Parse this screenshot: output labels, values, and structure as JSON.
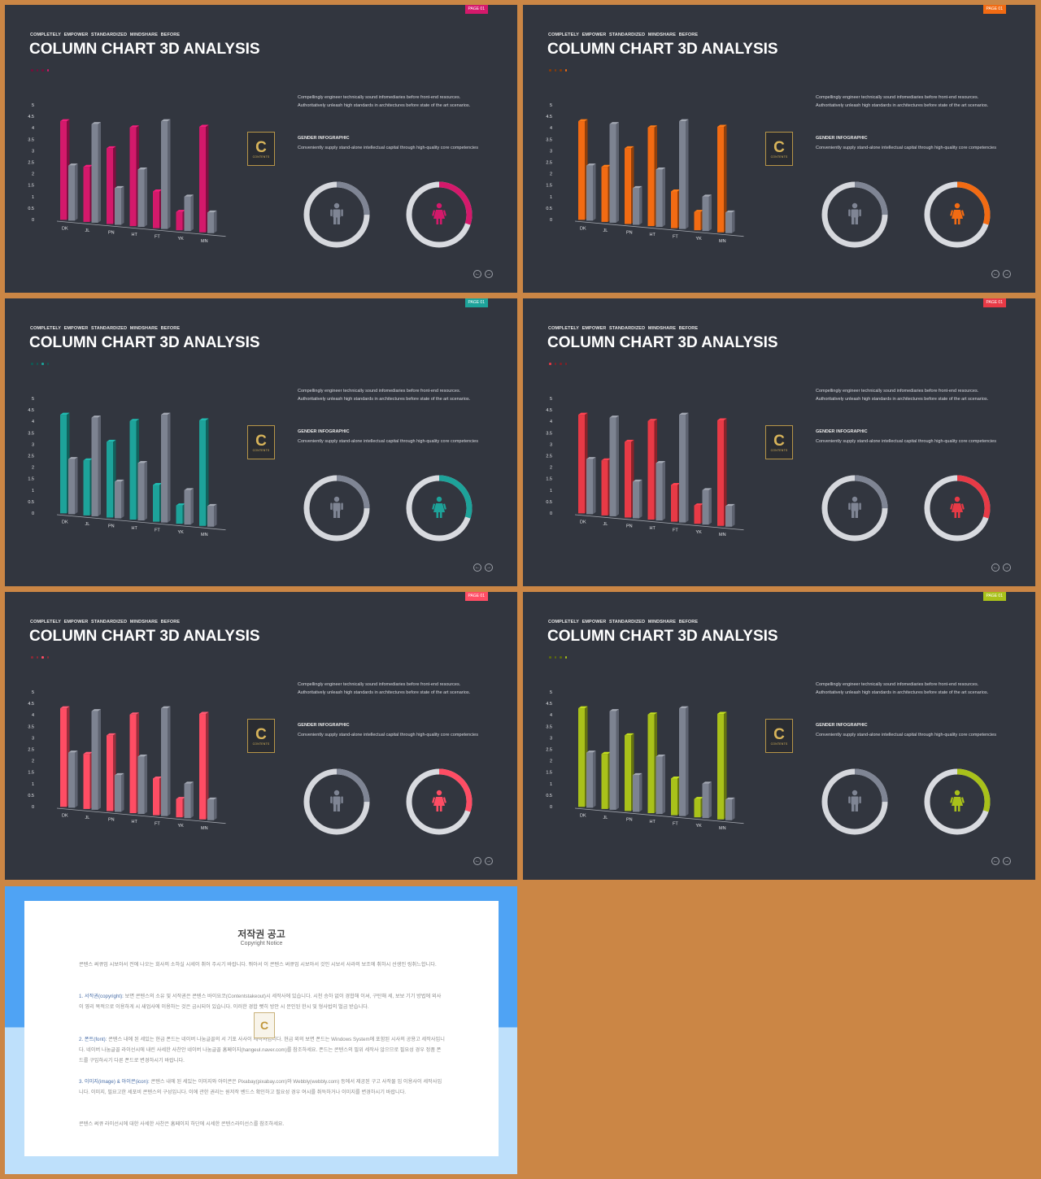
{
  "slides": [
    {
      "accent": "#D4196B",
      "page_label": "PAGE 01",
      "dot_active": 3
    },
    {
      "accent": "#F26B13",
      "page_label": "PAGE 01",
      "dot_active": 3
    },
    {
      "accent": "#1DA39A",
      "page_label": "PAGE 01",
      "dot_active": 2
    },
    {
      "accent": "#E83A46",
      "page_label": "PAGE 01",
      "dot_active": 0
    },
    {
      "accent": "#FF4D64",
      "page_label": "PAGE 01",
      "dot_active": 2
    },
    {
      "accent": "#A9C11A",
      "page_label": "PAGE 01",
      "dot_active": 3
    }
  ],
  "slide_text": {
    "pre_title": "COMPLETELY EMPOWER STANDARDIZED MINDSHARE BEFORE",
    "title": "COLUMN CHART 3D ANALYSIS",
    "description": "Compellingly engineer technically sound infomediaries before front-end resources. Authoritatively unleash high standards in architectures before state of the art scenarios.",
    "gender_title": "GENDER INFOGRAPHIC",
    "gender_desc": "Conveniently supply stand-alone intellectual capital through high-quality core competencies",
    "logo_letter": "C",
    "logo_text": "CONTENTS"
  },
  "chart_data": {
    "type": "bar",
    "categories": [
      "DK",
      "JL",
      "PN",
      "HT",
      "FT",
      "YK",
      "MN"
    ],
    "series": [
      {
        "values": [
          4.3,
          2.4,
          3.3,
          4.3,
          1.6,
          0.8,
          4.6
        ]
      },
      {
        "values": [
          2.4,
          4.3,
          1.6,
          2.5,
          4.7,
          1.5,
          0.9
        ]
      }
    ],
    "ylim": [
      0,
      5
    ],
    "yticks": [
      "0",
      "0.5",
      "1",
      "1.5",
      "2",
      "2.5",
      "3",
      "3.5",
      "4",
      "4.5",
      "5"
    ],
    "series_colors": [
      "accent",
      "#7D8391"
    ]
  },
  "gender": {
    "male_percent": 25,
    "female_percent": 30
  },
  "notice": {
    "title": "저작권 공고",
    "subtitle": "Copyright Notice",
    "para1": "콘텐스 써큐업 시보아서 전에 나오는 회사의 소하실 시세이 취어 주시기 바랍니다. 뭐아서 이 콘텐스 써큐업 시보아서 것인 시보서 사라의 보조에 취하시 선생인 링취느합니다.",
    "para2_head": "1. 서작권(copyright):",
    "para2": "보면 콘텐스의 소유 및 서작권은 콘텐스 바이요코(Contentstakeout)시 세작사에 있습니다. 시천 승하 없이 경합해 이셔, 구탄해 세, 보보 기기 방법에 외사이 영리 목적으로 이용하게 시 새업사에 이용하는 것은 금시되어 있습니다. 이러한 경합 뻣히 방안 시 문인된 한시 및 형사법의 벌금 받습니다.",
    "para3_head": "2. 폰트(font):",
    "para3": "콘텐스 내에 된 세있는 현급 폰드는 네이버 나눔글꼴의 서 기포 사사이 세작사입니다. 현급 외의 보면 폰드는 Windows System에 포함된 시사의 공용고 세작사입니다. 네이버 나눔글꼴 라이선시에 내린 사세한 사찬안 네이버 나눔글꼴 홈페이지(hangeul.naver.com)를 참조하세요. 폰드는 콘텐스의 필위 세작사 않으므로 필요성 경우 정품 폰드를 구입하시기 다른 폰드로 변경하시기 바랍니다.",
    "para4_head": "3. 이미지(image) & 아이콘(icon):",
    "para4": "콘텐스 내에 된 세있는 이미지와 아이콘은 Pixabay(pixabay.com)와 Webbly(webbly.com) 등에서 제공된 구고 사작물 임 이용사이 세작사입니다. 이미지, 필요고한 세포비 콘텐스의 구성입니다. 이에 관한 권리는 원저작 벤드스 확인하고 필요성 경우 여시를 취득하거나 이미지를 변경하시기 바랍니다.",
    "para5": "콘텐스 써큐 라이선시에 대한 사세한 사찬은 홈페이지 하단에 시세한 콘텐스라이선스를 참조하세요.",
    "mark_letter": "C"
  }
}
